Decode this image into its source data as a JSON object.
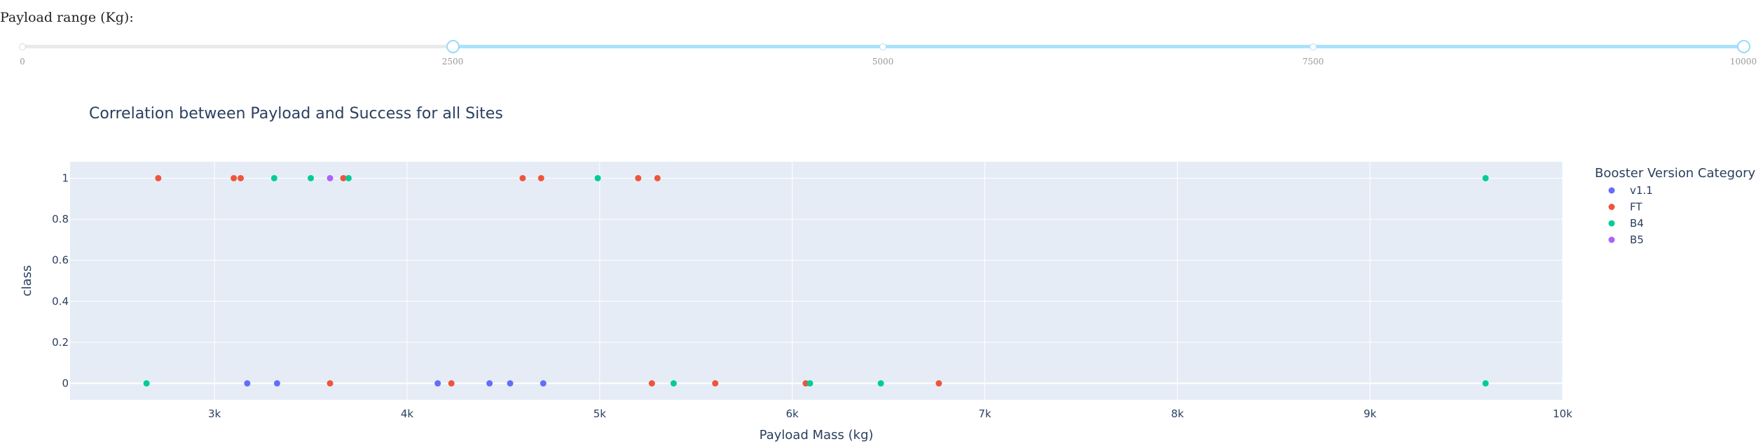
{
  "slider": {
    "label": "Payload range (Kg):",
    "min": 0,
    "max": 10000,
    "value_low": 2500,
    "value_high": 10000,
    "marks": [
      "0",
      "2500",
      "5000",
      "7500",
      "10000"
    ],
    "accent_color": "#abe2fb"
  },
  "chart_data": {
    "type": "scatter",
    "title": "Correlation between Payload and Success for all Sites",
    "xlabel": "Payload Mass (kg)",
    "ylabel": "class",
    "xlim": [
      2250,
      10000
    ],
    "ylim": [
      -0.08,
      1.08
    ],
    "xticks": [
      3000,
      4000,
      5000,
      6000,
      7000,
      8000,
      9000,
      10000
    ],
    "xtick_labels": [
      "3k",
      "4k",
      "5k",
      "6k",
      "7k",
      "8k",
      "9k",
      "10k"
    ],
    "yticks": [
      0,
      0.2,
      0.4,
      0.6,
      0.8,
      1
    ],
    "ytick_labels": [
      "0",
      "0.2",
      "0.4",
      "0.6",
      "0.8",
      "1"
    ],
    "grid": true,
    "legend_title": "Booster Version Category",
    "legend_position": "right",
    "plot_bg": "#e5ecf6",
    "series": [
      {
        "name": "v1.1",
        "color": "#636efa",
        "points": [
          [
            3170,
            0
          ],
          [
            3325,
            0
          ],
          [
            4159,
            0
          ],
          [
            4428,
            0
          ],
          [
            4535,
            0
          ],
          [
            4707,
            0
          ]
        ]
      },
      {
        "name": "FT",
        "color": "#ef553b",
        "points": [
          [
            2708,
            1
          ],
          [
            3100,
            1
          ],
          [
            3136,
            1
          ],
          [
            3669,
            1
          ],
          [
            4600,
            1
          ],
          [
            4696,
            1
          ],
          [
            5200,
            1
          ],
          [
            5300,
            1
          ],
          [
            3600,
            0
          ],
          [
            4230,
            0
          ],
          [
            5271,
            0
          ],
          [
            5600,
            0
          ],
          [
            6070,
            0
          ],
          [
            6761,
            0
          ]
        ]
      },
      {
        "name": "B4",
        "color": "#00cc96",
        "points": [
          [
            3310,
            1
          ],
          [
            3500,
            1
          ],
          [
            3696,
            1
          ],
          [
            4990,
            1
          ],
          [
            9600,
            1
          ],
          [
            2647,
            0
          ],
          [
            5384,
            0
          ],
          [
            6092,
            0
          ],
          [
            6460,
            0
          ],
          [
            9600,
            0
          ]
        ]
      },
      {
        "name": "B5",
        "color": "#ab63fa",
        "points": [
          [
            3600,
            1
          ]
        ]
      }
    ]
  }
}
